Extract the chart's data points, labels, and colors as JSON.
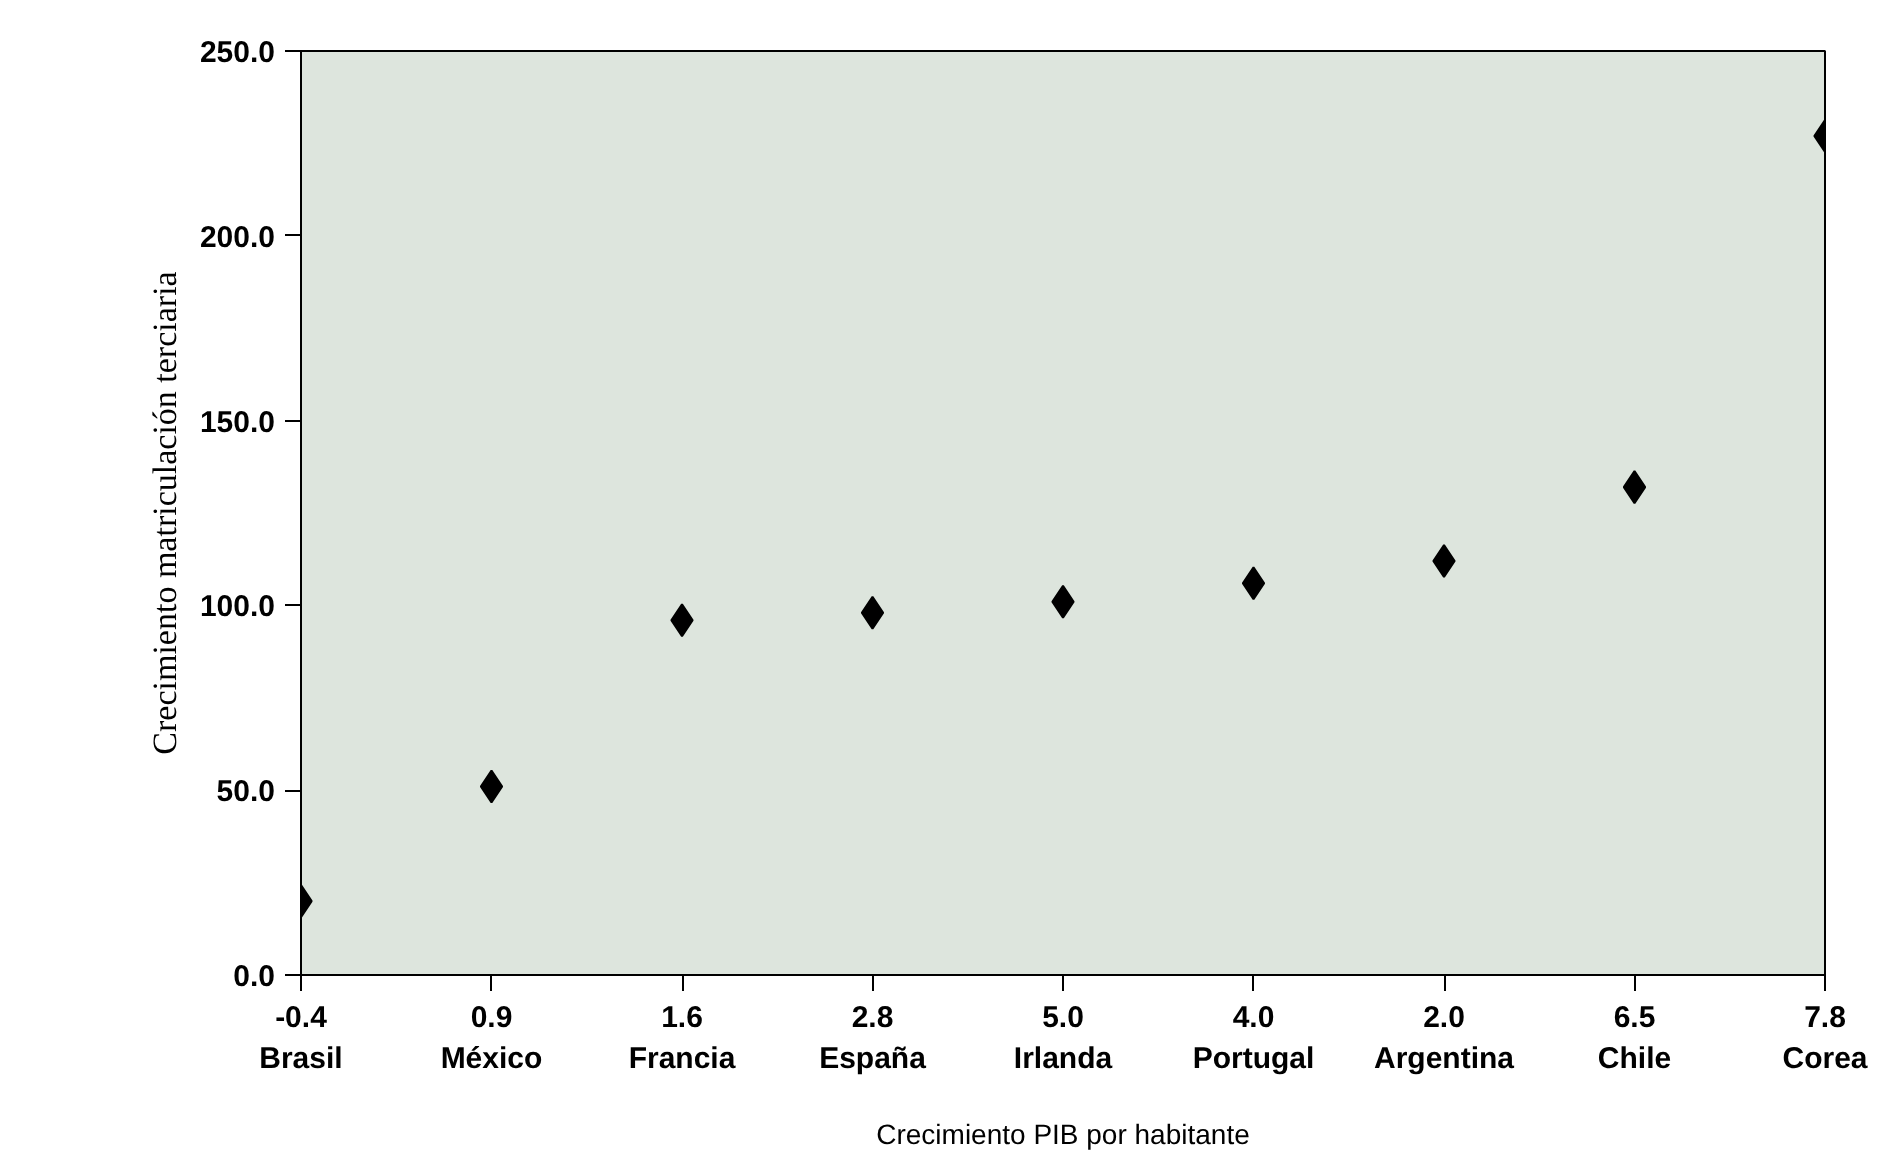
{
  "chart_data": {
    "type": "scatter",
    "xlabel": "Crecimiento PIB por habitante",
    "ylabel": "Crecimiento matriculación terciaria",
    "categories": [
      "-0.4\nBrasil",
      "0.9\nMéxico",
      "1.6\nFrancia",
      "2.8\nEspaña",
      "5.0\nIrlanda",
      "4.0\nPortugal",
      "2.0\nArgentina",
      "6.5\nChile",
      "7.8\nCorea"
    ],
    "series": [
      {
        "color": "#000000",
        "values": [
          20,
          51,
          96,
          98,
          101,
          106,
          112,
          132,
          227
        ]
      }
    ],
    "ylim": [
      0,
      250
    ],
    "yticks": [
      {
        "value": 0,
        "label": "0.0"
      },
      {
        "value": 50,
        "label": "50.0"
      },
      {
        "value": 100,
        "label": "100.0"
      },
      {
        "value": 150,
        "label": "150.0"
      },
      {
        "value": 200,
        "label": "200.0"
      },
      {
        "value": 250,
        "label": "250.0"
      }
    ],
    "marker": "diamond",
    "grid": false
  }
}
